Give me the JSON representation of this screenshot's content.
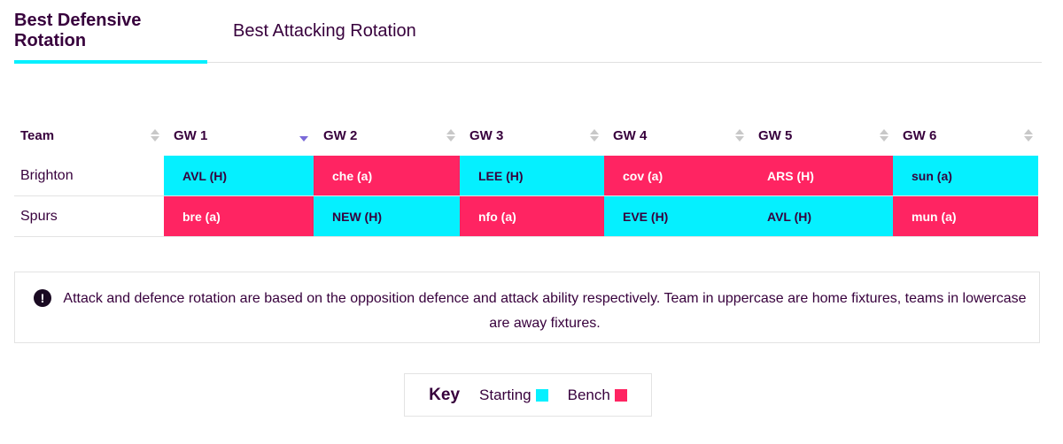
{
  "tabs": [
    {
      "label": "Best Defensive Rotation",
      "active": true
    },
    {
      "label": "Best Attacking Rotation",
      "active": false
    }
  ],
  "table": {
    "columns": [
      "Team",
      "GW 1",
      "GW 2",
      "GW 3",
      "GW 4",
      "GW 5",
      "GW 6"
    ],
    "rows": [
      {
        "team": "Brighton",
        "fixtures": [
          {
            "text": "AVL (H)",
            "status": "starting"
          },
          {
            "text": "che (a)",
            "status": "bench"
          },
          {
            "text": "LEE (H)",
            "status": "starting"
          },
          {
            "text": "cov (a)",
            "status": "bench"
          },
          {
            "text": "ARS (H)",
            "status": "bench"
          },
          {
            "text": "sun (a)",
            "status": "starting"
          }
        ]
      },
      {
        "team": "Spurs",
        "fixtures": [
          {
            "text": "bre (a)",
            "status": "bench"
          },
          {
            "text": "NEW (H)",
            "status": "starting"
          },
          {
            "text": "nfo (a)",
            "status": "bench"
          },
          {
            "text": "EVE (H)",
            "status": "starting"
          },
          {
            "text": "AVL (H)",
            "status": "starting"
          },
          {
            "text": "mun (a)",
            "status": "bench"
          }
        ]
      }
    ]
  },
  "info": {
    "icon": "exclamation-circle-icon",
    "text": "Attack and defence rotation are based on the opposition defence and attack ability respectively. Team in uppercase are home fixtures, teams in lowercase are away fixtures."
  },
  "key": {
    "title": "Key",
    "starting_label": "Starting",
    "bench_label": "Bench"
  },
  "colors": {
    "starting": "#05f0ff",
    "bench": "#ff2462",
    "text": "#37003c",
    "sort_active": "#7a6ad8"
  }
}
